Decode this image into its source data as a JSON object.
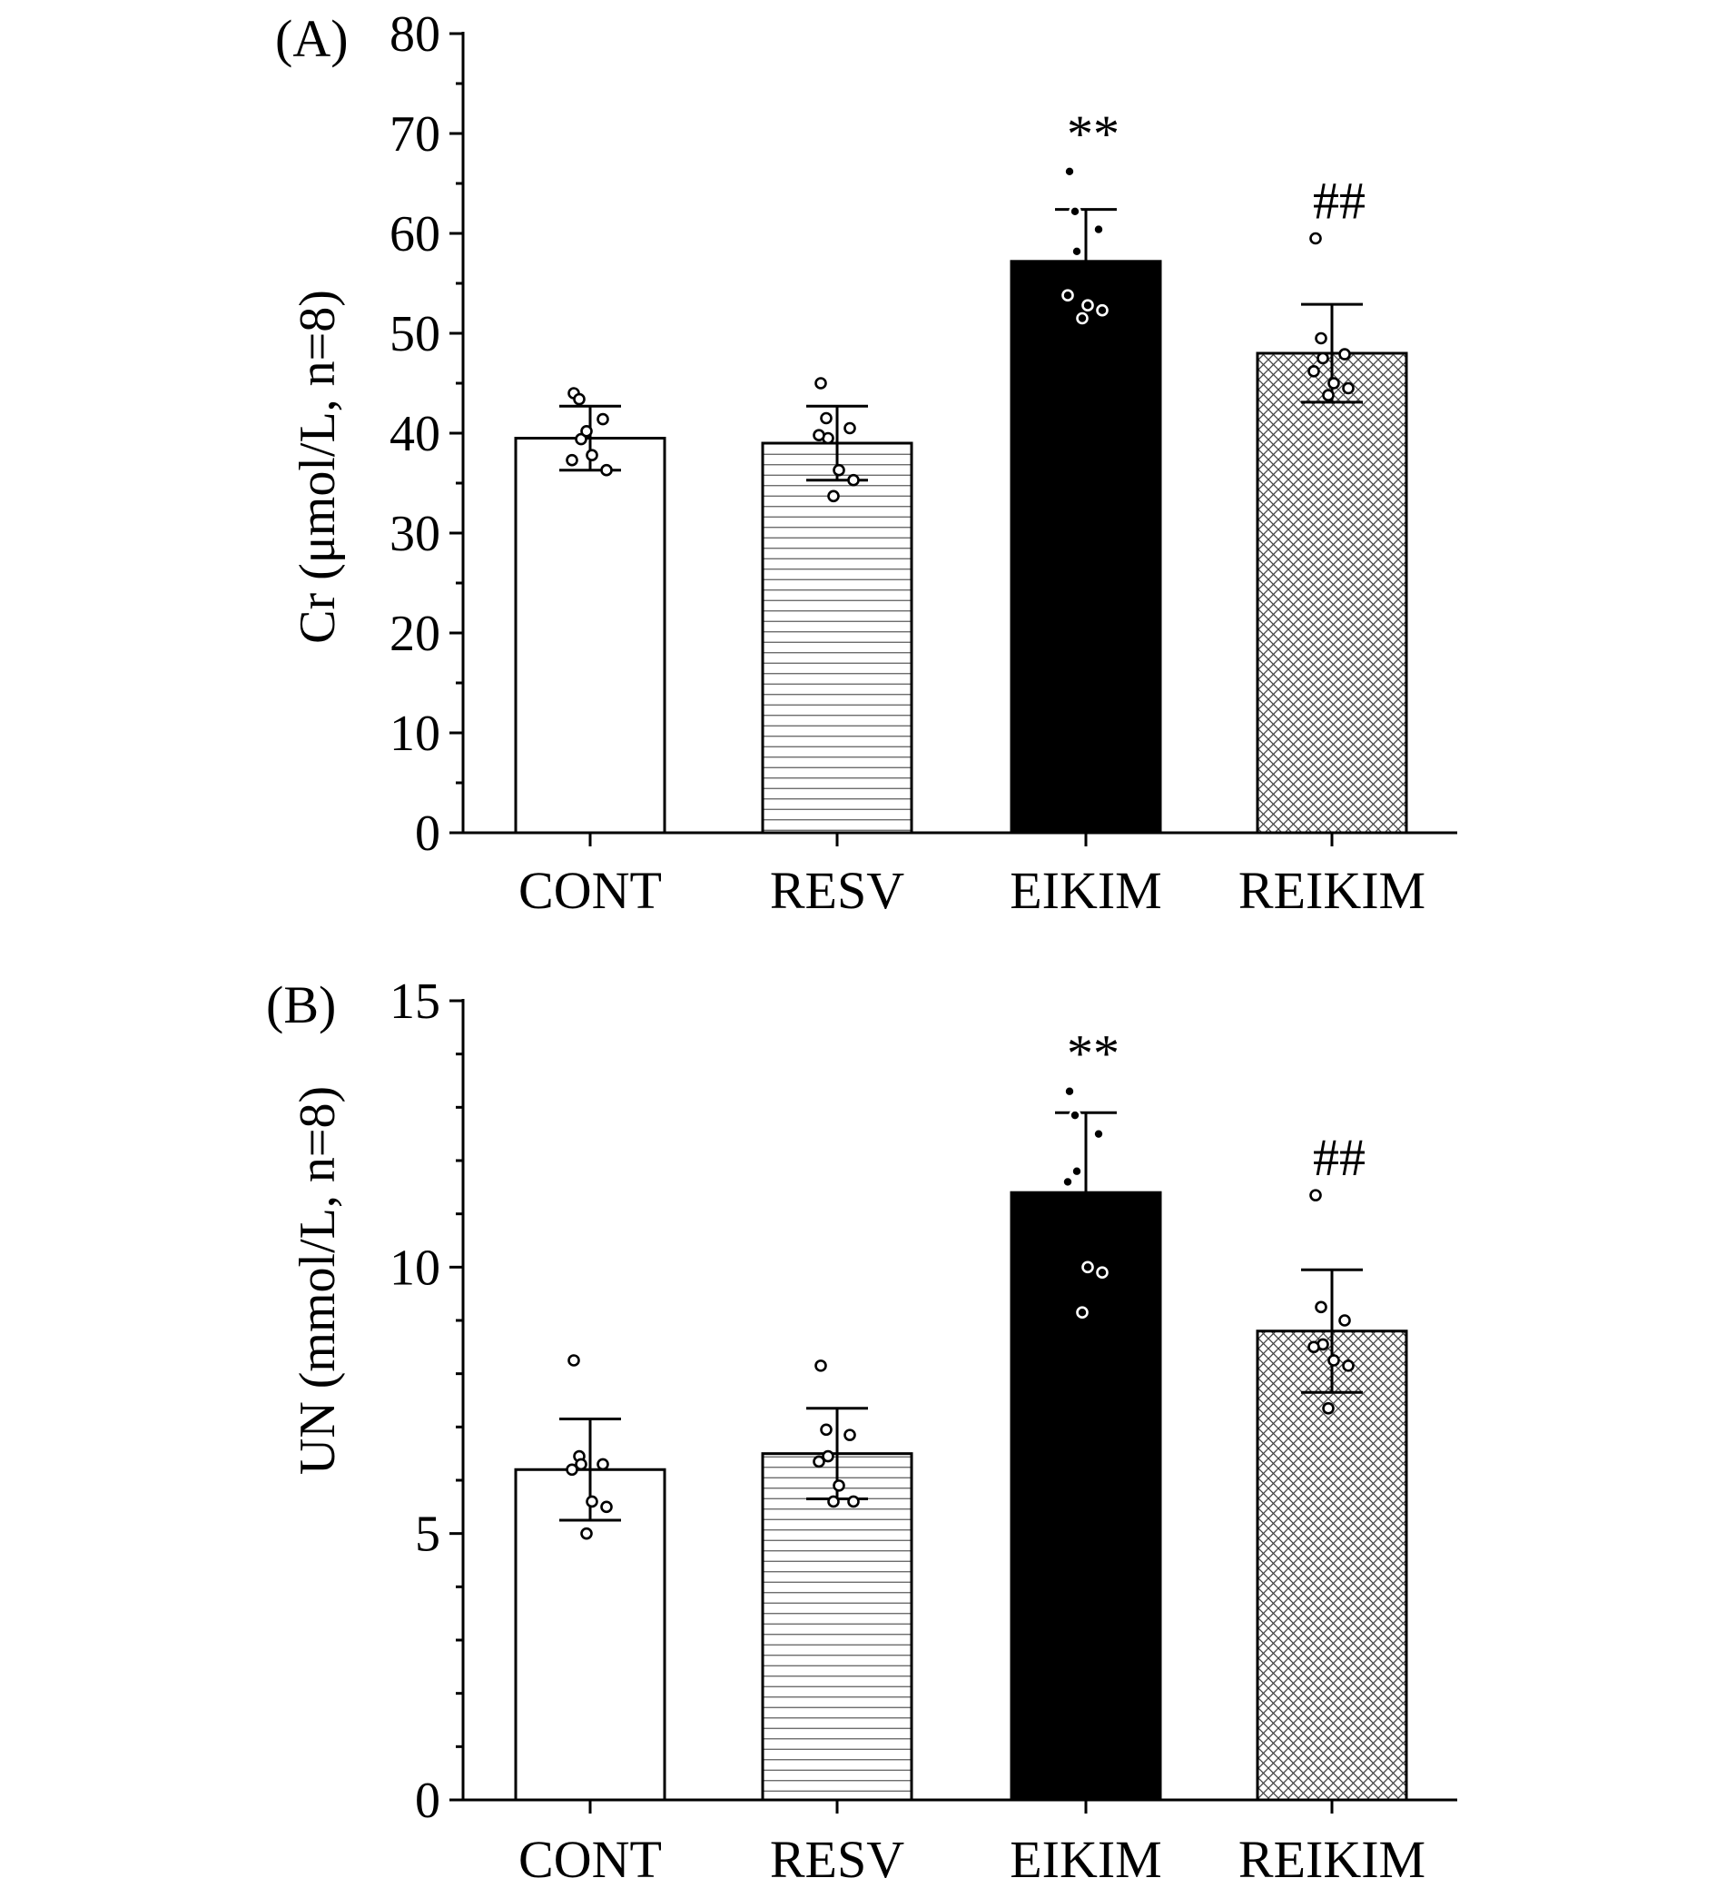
{
  "chart_data": [
    {
      "type": "bar",
      "panel_label": "(A)",
      "title": "",
      "xlabel": "",
      "ylabel": "Cr (μmol/L, n=8)",
      "ylim": [
        0,
        80
      ],
      "yticks": [
        0,
        10,
        20,
        30,
        40,
        50,
        60,
        70,
        80
      ],
      "ytick_labels": [
        "0",
        "10",
        "20",
        "30",
        "40",
        "50",
        "60",
        "70",
        "80"
      ],
      "categories": [
        "CONT",
        "RESV",
        "EIKIM",
        "REIKIM"
      ],
      "values": [
        39.5,
        39.0,
        57.2,
        48.0
      ],
      "errors": [
        3.2,
        3.7,
        5.2,
        4.9
      ],
      "fills": [
        "empty",
        "horizontal-lines",
        "solid-black",
        "crosshatch"
      ],
      "significance": [
        "",
        "",
        "**",
        "##"
      ],
      "points": [
        [
          44.0,
          43.4,
          41.4,
          39.4,
          37.3,
          37.8,
          36.3,
          40.2
        ],
        [
          45.0,
          41.5,
          40.5,
          39.5,
          39.8,
          36.3,
          35.3,
          33.7
        ],
        [
          66.2,
          62.2,
          60.4,
          58.2,
          53.8,
          52.8,
          52.3,
          51.5
        ],
        [
          59.5,
          49.5,
          47.9,
          47.5,
          46.2,
          45.0,
          44.5,
          43.8
        ]
      ],
      "grid": false,
      "legend": "none"
    },
    {
      "type": "bar",
      "panel_label": "(B)",
      "title": "",
      "xlabel": "",
      "ylabel": "UN (mmol/L, n=8)",
      "ylim": [
        0,
        15
      ],
      "yticks": [
        0,
        5,
        10,
        15
      ],
      "ytick_labels": [
        "0",
        "5",
        "10",
        "15"
      ],
      "categories": [
        "CONT",
        "RESV",
        "EIKIM",
        "REIKIM"
      ],
      "values": [
        6.2,
        6.5,
        11.4,
        8.8
      ],
      "errors": [
        0.95,
        0.85,
        1.5,
        1.15
      ],
      "fills": [
        "empty",
        "horizontal-lines",
        "solid-black",
        "crosshatch"
      ],
      "significance": [
        "",
        "",
        "**",
        "##"
      ],
      "points": [
        [
          8.25,
          6.45,
          6.3,
          6.3,
          6.2,
          5.6,
          5.5,
          5.0
        ],
        [
          8.15,
          6.95,
          6.85,
          6.45,
          6.35,
          5.9,
          5.6,
          5.6
        ],
        [
          13.3,
          12.85,
          12.5,
          11.8,
          11.6,
          10.0,
          9.9,
          9.15
        ],
        [
          11.35,
          9.25,
          9.0,
          8.55,
          8.5,
          8.25,
          8.15,
          7.35
        ]
      ],
      "grid": false,
      "legend": "none"
    }
  ]
}
